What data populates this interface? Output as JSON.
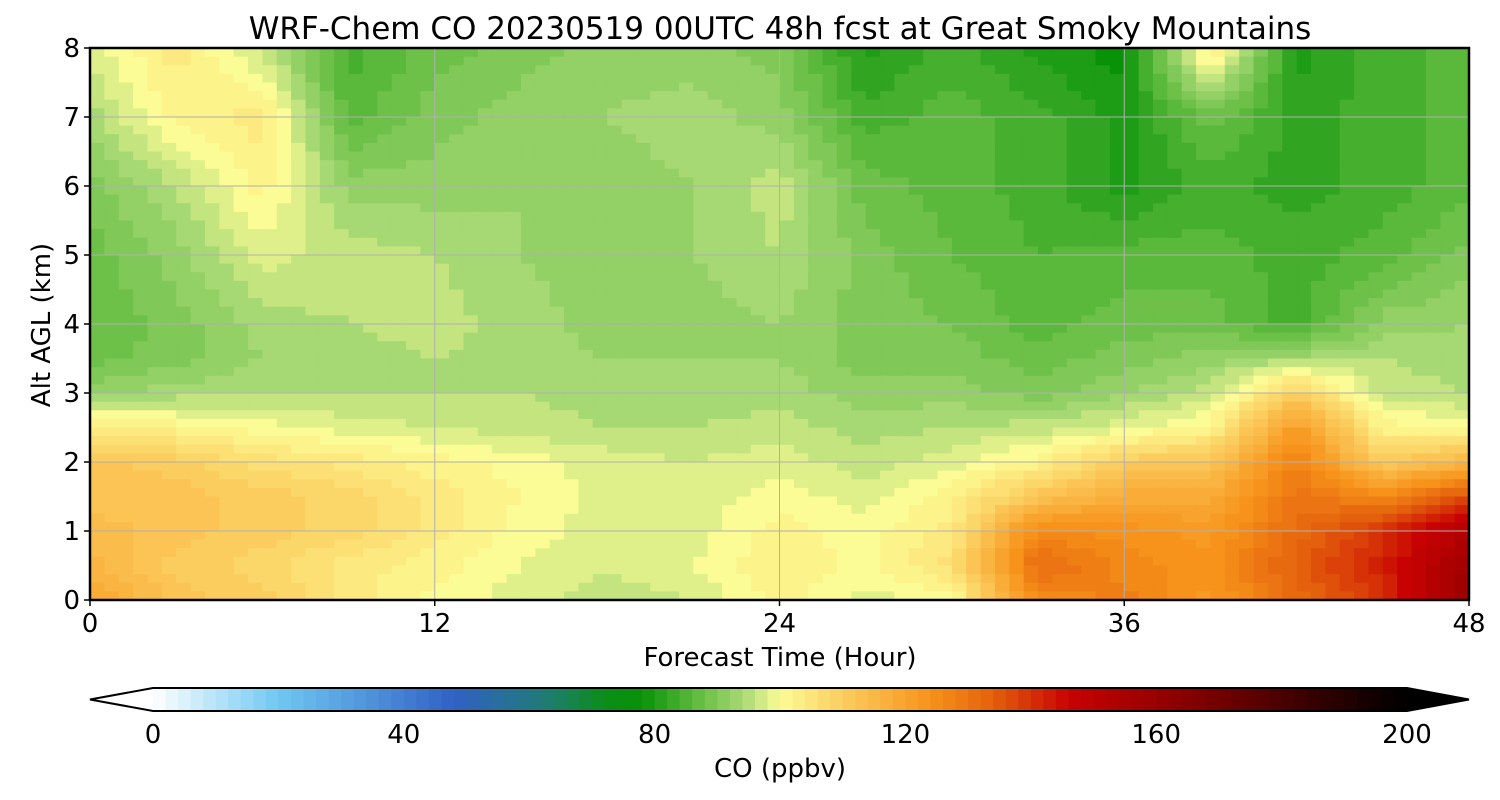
{
  "chart_data": {
    "type": "heatmap",
    "title": "WRF-Chem CO  20230519 00UTC 48h fcst at Great Smoky Mountains",
    "xlabel": "Forecast Time (Hour)",
    "ylabel": "Alt AGL (km)",
    "xlim": [
      0,
      48
    ],
    "ylim": [
      0,
      8
    ],
    "xticks": [
      0,
      12,
      24,
      36,
      48
    ],
    "yticks": [
      0,
      1,
      2,
      3,
      4,
      5,
      6,
      7,
      8
    ],
    "grid": true,
    "hours": [
      0,
      3,
      6,
      9,
      12,
      15,
      18,
      21,
      24,
      27,
      30,
      33,
      36,
      39,
      42,
      45,
      48
    ],
    "altitudes_km": [
      0,
      0.5,
      1,
      1.5,
      2,
      2.5,
      3,
      3.5,
      4,
      5,
      6,
      7,
      8
    ],
    "values_ppbv": [
      [
        120,
        112,
        110,
        104,
        100,
        98,
        96,
        97,
        102,
        98,
        100,
        125,
        128,
        122,
        132,
        140,
        160
      ],
      [
        116,
        110,
        108,
        104,
        102,
        99,
        97,
        99,
        103,
        100,
        106,
        132,
        126,
        124,
        134,
        142,
        158
      ],
      [
        114,
        112,
        110,
        108,
        104,
        100,
        98,
        98,
        102,
        100,
        104,
        126,
        124,
        122,
        132,
        140,
        152
      ],
      [
        112,
        112,
        110,
        108,
        104,
        101,
        98,
        98,
        100,
        98,
        102,
        112,
        118,
        118,
        130,
        126,
        136
      ],
      [
        112,
        110,
        106,
        104,
        102,
        100,
        98,
        97,
        98,
        96,
        98,
        102,
        110,
        112,
        128,
        110,
        116
      ],
      [
        104,
        102,
        100,
        98,
        97,
        96,
        95,
        95,
        96,
        94,
        95,
        96,
        98,
        102,
        122,
        102,
        100
      ],
      [
        92,
        94,
        95,
        95,
        95,
        95,
        94,
        94,
        94,
        92,
        92,
        90,
        93,
        96,
        110,
        96,
        95
      ],
      [
        88,
        90,
        93,
        94,
        95,
        94,
        93,
        93,
        93,
        90,
        90,
        88,
        90,
        92,
        94,
        95,
        94
      ],
      [
        87,
        90,
        94,
        95,
        96,
        94,
        92,
        92,
        93,
        90,
        89,
        86,
        88,
        88,
        84,
        92,
        93
      ],
      [
        88,
        92,
        98,
        96,
        95,
        93,
        92,
        93,
        95,
        90,
        87,
        85,
        86,
        86,
        84,
        86,
        90
      ],
      [
        90,
        95,
        102,
        92,
        92,
        93,
        92,
        93,
        96,
        88,
        86,
        84,
        80,
        84,
        82,
        84,
        86
      ],
      [
        94,
        102,
        104,
        86,
        90,
        92,
        93,
        94,
        92,
        84,
        86,
        84,
        80,
        88,
        82,
        84,
        86
      ],
      [
        98,
        104,
        96,
        84,
        88,
        90,
        92,
        92,
        90,
        80,
        84,
        80,
        78,
        104,
        80,
        84,
        86
      ]
    ]
  },
  "colorbar": {
    "label": "CO  (ppbv)",
    "min": 0,
    "max": 200,
    "ticks": [
      0,
      40,
      80,
      120,
      160,
      200
    ],
    "extend": "both",
    "stops": [
      {
        "value": 0,
        "color": "#ffffff"
      },
      {
        "value": 20,
        "color": "#6fc8f2"
      },
      {
        "value": 48,
        "color": "#3161c4"
      },
      {
        "value": 62,
        "color": "#217a7a"
      },
      {
        "value": 72,
        "color": "#0c8d18"
      },
      {
        "value": 78,
        "color": "#089208"
      },
      {
        "value": 86,
        "color": "#5ab83a"
      },
      {
        "value": 94,
        "color": "#a6d873"
      },
      {
        "value": 100,
        "color": "#fcfc96"
      },
      {
        "value": 112,
        "color": "#fbc454"
      },
      {
        "value": 124,
        "color": "#f7931a"
      },
      {
        "value": 134,
        "color": "#e4600c"
      },
      {
        "value": 146,
        "color": "#c80202"
      },
      {
        "value": 164,
        "color": "#8a0000"
      },
      {
        "value": 184,
        "color": "#3a0000"
      },
      {
        "value": 200,
        "color": "#000000"
      }
    ]
  }
}
